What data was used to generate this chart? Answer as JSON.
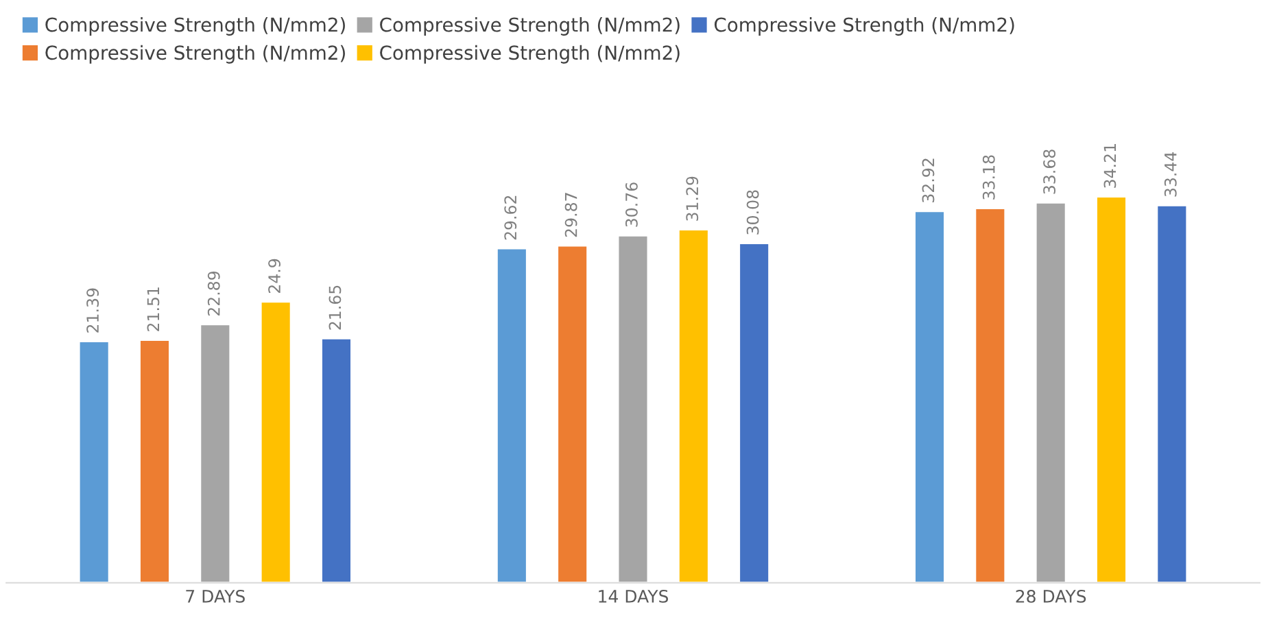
{
  "chart_data": {
    "type": "bar",
    "categories": [
      "7 DAYS",
      "14 DAYS",
      "28 DAYS"
    ],
    "series": [
      {
        "name": "Compressive Strength (N/mm2)",
        "color": "#5b9bd5",
        "values": [
          21.39,
          29.62,
          32.92
        ]
      },
      {
        "name": "Compressive Strength (N/mm2)",
        "color": "#ed7d31",
        "values": [
          21.51,
          29.87,
          33.18
        ]
      },
      {
        "name": "Compressive Strength (N/mm2)",
        "color": "#a5a5a5",
        "values": [
          22.89,
          30.76,
          33.68
        ]
      },
      {
        "name": "Compressive Strength (N/mm2)",
        "color": "#ffc000",
        "values": [
          24.9,
          31.29,
          34.21
        ]
      },
      {
        "name": "Compressive Strength (N/mm2)",
        "color": "#4472c4",
        "values": [
          21.65,
          30.08,
          33.44
        ]
      }
    ],
    "data_labels": true,
    "legend": "top",
    "grid": false,
    "tick_labels": "x"
  }
}
